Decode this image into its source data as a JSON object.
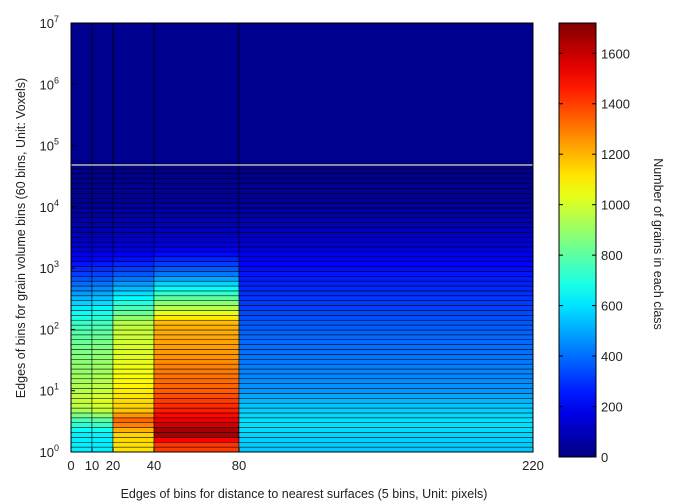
{
  "chart_data": {
    "type": "heatmap",
    "title": "",
    "xlabel": "Edges of bins for distance to nearest surfaces (5 bins, Unit: pixels)",
    "ylabel": "Edges of bins for grain volume bins (60 bins, Unit: Voxels)",
    "colorbar_label": "Number of grains in each class",
    "x_edges": [
      0,
      10,
      20,
      40,
      80,
      220
    ],
    "x_ticks": [
      0,
      10,
      20,
      40,
      80,
      220
    ],
    "y_scale": "log",
    "ylim": [
      1,
      10000000
    ],
    "y_ticks": [
      {
        "base": "10",
        "exp": "0"
      },
      {
        "base": "10",
        "exp": "1"
      },
      {
        "base": "10",
        "exp": "2"
      },
      {
        "base": "10",
        "exp": "3"
      },
      {
        "base": "10",
        "exp": "4"
      },
      {
        "base": "10",
        "exp": "5"
      },
      {
        "base": "10",
        "exp": "6"
      },
      {
        "base": "10",
        "exp": "7"
      }
    ],
    "separator_line_y": 50000,
    "bins_below_separator": 59,
    "clim": [
      0,
      1720
    ],
    "colorbar_ticks": [
      0,
      200,
      400,
      600,
      800,
      1000,
      1200,
      1400,
      1600
    ],
    "colormap": "jet",
    "profile_log10_volume": [
      0,
      0.15,
      0.3,
      0.5,
      0.7,
      0.85,
      1.0,
      1.3,
      1.6,
      1.9,
      2.1,
      2.3,
      2.6,
      2.9,
      3.2,
      3.5,
      4.0,
      4.7
    ],
    "profile_by_column": [
      [
        620,
        620,
        620,
        750,
        950,
        980,
        950,
        900,
        860,
        800,
        740,
        640,
        470,
        320,
        190,
        100,
        40,
        12
      ],
      [
        620,
        620,
        630,
        780,
        1000,
        1020,
        980,
        920,
        880,
        820,
        760,
        660,
        490,
        330,
        195,
        100,
        40,
        12
      ],
      [
        1120,
        1130,
        1150,
        1350,
        1150,
        1130,
        1100,
        1060,
        1020,
        990,
        960,
        800,
        580,
        360,
        210,
        110,
        45,
        15
      ],
      [
        1400,
        1420,
        1700,
        1540,
        1450,
        1400,
        1350,
        1300,
        1250,
        1220,
        1200,
        1000,
        720,
        420,
        240,
        120,
        50,
        15
      ],
      [
        550,
        560,
        580,
        600,
        560,
        520,
        470,
        440,
        410,
        390,
        360,
        330,
        290,
        250,
        190,
        120,
        50,
        12
      ]
    ],
    "top_block_value": 25
  }
}
